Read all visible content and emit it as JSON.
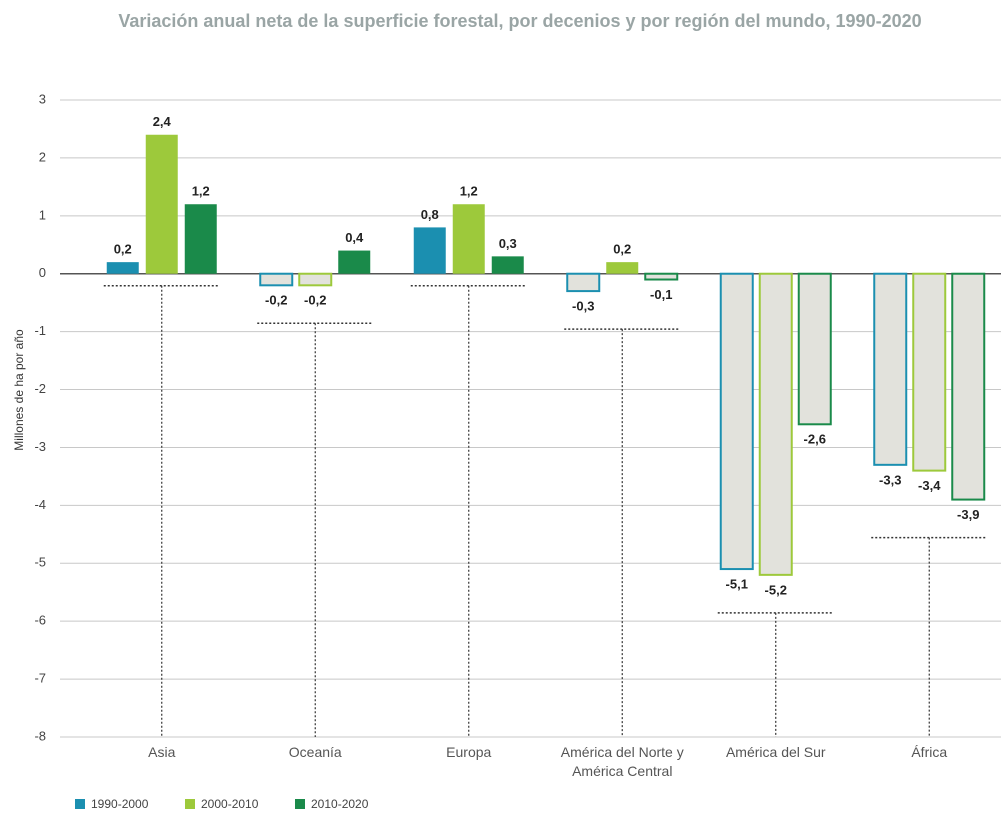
{
  "chart_data": {
    "type": "bar",
    "title": "Variación anual neta de la superficie forestal, por decenios y por región del mundo, 1990-2020",
    "y_label": "Millones de ha por año",
    "categories": [
      "Asia",
      "Oceanía",
      "Europa",
      "América del Norte y América Central",
      "América del Sur",
      "África"
    ],
    "series": [
      {
        "name": "1990-2000",
        "color": "#1b8fb0",
        "values": [
          0.2,
          -0.2,
          0.8,
          -0.3,
          -5.1,
          -3.3
        ],
        "value_labels": [
          "0,2",
          "-0,2",
          "0,8",
          "-0,3",
          "-5,1",
          "-3,3"
        ]
      },
      {
        "name": "2000-2010",
        "color": "#9dc93b",
        "values": [
          2.4,
          -0.2,
          1.2,
          0.2,
          -5.2,
          -3.4
        ],
        "value_labels": [
          "2,4",
          "-0,2",
          "1,2",
          "0,2",
          "-5,2",
          "-3,4"
        ]
      },
      {
        "name": "2010-2020",
        "color": "#1a8a4a",
        "values": [
          1.2,
          0.4,
          0.3,
          -0.1,
          -2.6,
          -3.9
        ],
        "value_labels": [
          "1,2",
          "0,4",
          "0,3",
          "-0,1",
          "-2,6",
          "-3,9"
        ]
      }
    ],
    "ylim": [
      -8,
      3
    ],
    "yticks": [
      -8,
      -7,
      -6,
      -5,
      -4,
      -3,
      -2,
      -1,
      0,
      1,
      2,
      3
    ],
    "grid": true,
    "legend": "bottom-left"
  }
}
